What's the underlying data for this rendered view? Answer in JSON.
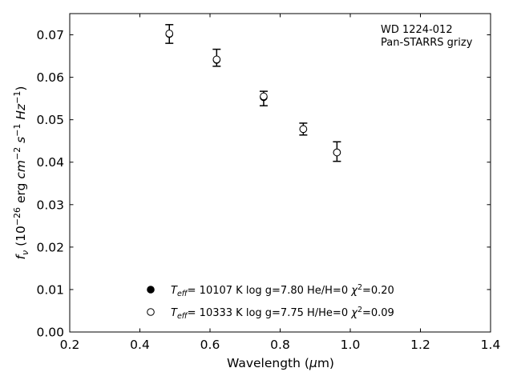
{
  "chart_data": {
    "type": "scatter",
    "title": "",
    "annotation": [
      "WD 1224-012",
      "Pan-STARRS grizy"
    ],
    "xlabel": "Wavelength",
    "xlabel_unit": "μm",
    "ylabel_prefix": "10",
    "ylabel_exp": "−26",
    "ylabel_unit": "erg",
    "xlim": [
      0.2,
      1.4
    ],
    "ylim": [
      0.0,
      0.075
    ],
    "xticks": [
      0.2,
      0.4,
      0.6,
      0.8,
      1.0,
      1.2,
      1.4
    ],
    "xtick_labels": [
      "0.2",
      "0.4",
      "0.6",
      "0.8",
      "1.0",
      "1.2",
      "1.4"
    ],
    "yticks": [
      0.0,
      0.01,
      0.02,
      0.03,
      0.04,
      0.05,
      0.06,
      0.07
    ],
    "ytick_labels": [
      "0.00",
      "0.01",
      "0.02",
      "0.03",
      "0.04",
      "0.05",
      "0.06",
      "0.07"
    ],
    "grid": false,
    "legend_position": "bottom-center",
    "observed": {
      "x": [
        0.484,
        0.619,
        0.753,
        0.866,
        0.962
      ],
      "y": [
        0.0702,
        0.0646,
        0.055,
        0.0478,
        0.0425
      ],
      "yerr": [
        0.0022,
        0.002,
        0.0017,
        0.0014,
        0.0023
      ]
    },
    "series": [
      {
        "marker": "filled-circle",
        "teff": "10107",
        "logg": "7.80",
        "composition": "He/H=0",
        "chi2": "0.20",
        "x": [
          0.484,
          0.619,
          0.753,
          0.866,
          0.962
        ],
        "y": [
          0.0702,
          0.0641,
          0.0553,
          0.0478,
          0.0423
        ]
      },
      {
        "marker": "open-circle",
        "teff": "10333",
        "logg": "7.75",
        "composition": "H/He=0",
        "chi2": "0.09",
        "x": [
          0.484,
          0.619,
          0.753,
          0.866,
          0.962
        ],
        "y": [
          0.0703,
          0.0642,
          0.0555,
          0.0478,
          0.0423
        ]
      }
    ]
  }
}
